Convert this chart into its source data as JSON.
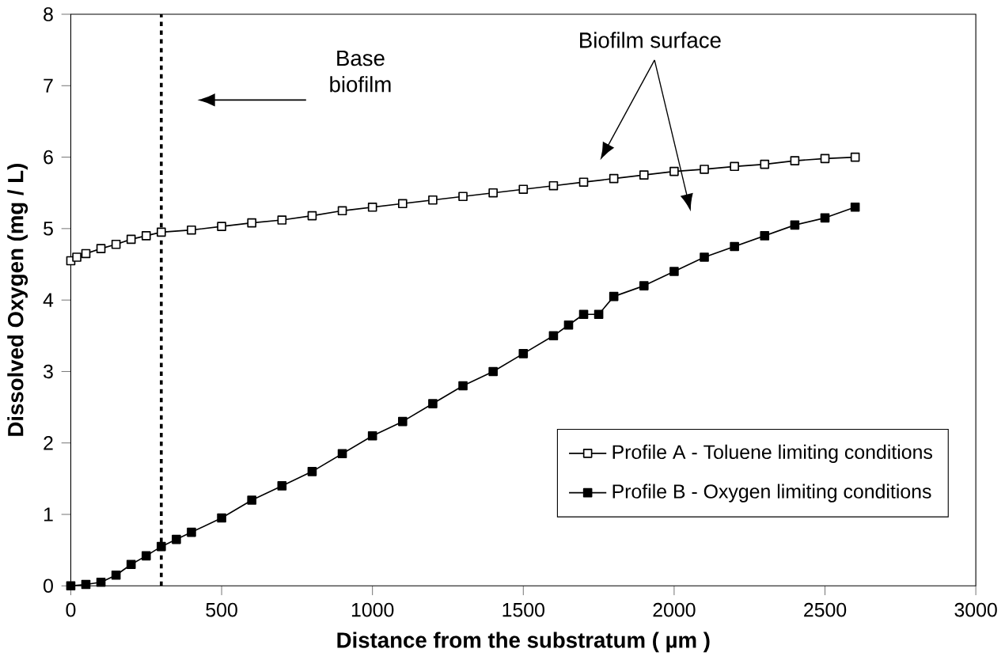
{
  "chart_data": {
    "type": "line",
    "xlabel": "Distance from the substratum ( µm )",
    "ylabel": "Dissolved Oxygen  (mg / L)",
    "xlim": [
      0,
      3000
    ],
    "xticks": [
      0,
      500,
      1000,
      1500,
      2000,
      2500,
      3000
    ],
    "ylim": [
      0,
      8
    ],
    "yticks": [
      0,
      1,
      2,
      3,
      4,
      5,
      6,
      7,
      8
    ],
    "grid": false,
    "legend": "bottom right",
    "marker": "square",
    "line_style": "solid",
    "series": [
      {
        "name": "Profile A - Toluene limiting conditions",
        "color": "#000000",
        "x": [
          0,
          20,
          50,
          100,
          150,
          200,
          250,
          300,
          400,
          500,
          600,
          700,
          800,
          900,
          1000,
          1100,
          1200,
          1300,
          1400,
          1500,
          1600,
          1700,
          1800,
          1900,
          2000,
          2100,
          2200,
          2300,
          2400,
          2500,
          2600
        ],
        "values": [
          4.55,
          4.6,
          4.65,
          4.72,
          4.78,
          4.85,
          4.9,
          4.95,
          4.98,
          5.03,
          5.08,
          5.12,
          5.18,
          5.25,
          5.3,
          5.35,
          5.4,
          5.45,
          5.5,
          5.55,
          5.6,
          5.65,
          5.7,
          5.75,
          5.8,
          5.83,
          5.87,
          5.9,
          5.95,
          5.98,
          6.0
        ]
      },
      {
        "name": "Profile B - Oxygen limiting conditions",
        "color": "#000000",
        "x": [
          0,
          50,
          100,
          150,
          200,
          250,
          300,
          350,
          400,
          500,
          600,
          700,
          800,
          900,
          1000,
          1100,
          1200,
          1300,
          1400,
          1500,
          1600,
          1650,
          1700,
          1750,
          1800,
          1900,
          2000,
          2100,
          2200,
          2300,
          2400,
          2500,
          2600
        ],
        "values": [
          0,
          0.02,
          0.05,
          0.15,
          0.3,
          0.42,
          0.55,
          0.65,
          0.75,
          0.95,
          1.2,
          1.4,
          1.6,
          1.85,
          2.1,
          2.3,
          2.55,
          2.8,
          3.0,
          3.25,
          3.5,
          3.65,
          3.8,
          3.8,
          4.05,
          4.2,
          4.4,
          4.6,
          4.75,
          4.9,
          5.05,
          5.15,
          5.3
        ]
      }
    ],
    "ref_lines": [
      {
        "axis": "x",
        "value": 300,
        "line_style": "dotted",
        "color": "#000000"
      }
    ],
    "annotations": [
      "Base biofilm",
      "Biofilm surface"
    ]
  }
}
